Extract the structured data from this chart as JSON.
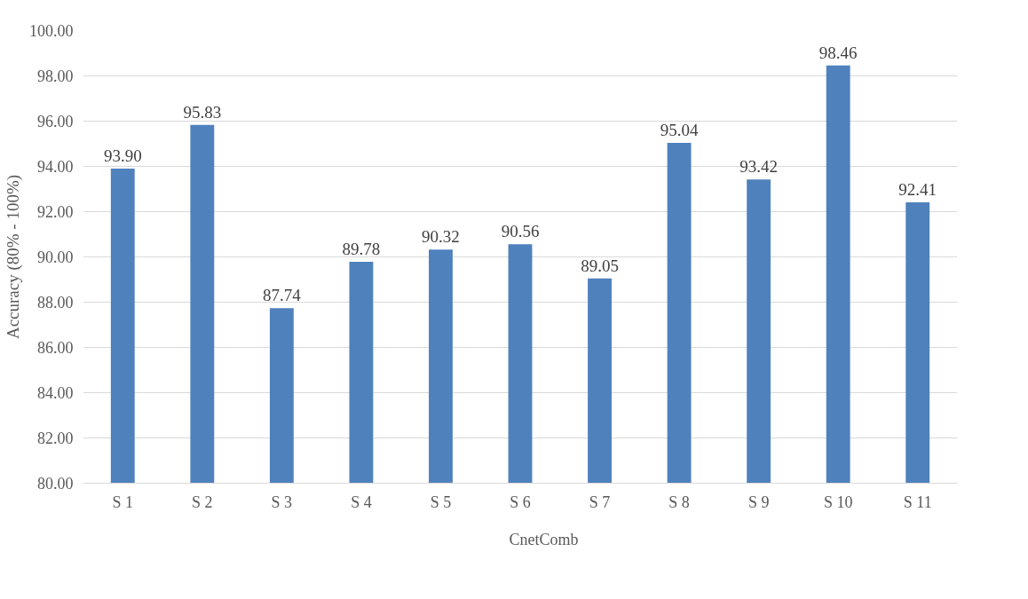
{
  "chart_data": {
    "type": "bar",
    "ylabel": "Accuracy (80% - 100%)",
    "categories": [
      "S 1",
      "S 2",
      "S 3",
      "S 4",
      "S 5",
      "S 6",
      "S 7",
      "S 8",
      "S 9",
      "S 10",
      "S 11"
    ],
    "series": [
      {
        "name": "CnetComb",
        "color": "#4f81bd",
        "values": [
          93.9,
          95.83,
          87.74,
          89.78,
          90.32,
          90.56,
          89.05,
          95.04,
          93.42,
          98.46,
          92.41
        ],
        "value_labels": [
          "93.90",
          "95.83",
          "87.74",
          "89.78",
          "90.32",
          "90.56",
          "89.05",
          "95.04",
          "93.42",
          "98.46",
          "92.41"
        ]
      }
    ],
    "ylim": [
      80,
      100
    ],
    "yticks": [
      {
        "value": 80,
        "label": "80.00"
      },
      {
        "value": 82,
        "label": "82.00"
      },
      {
        "value": 84,
        "label": "84.00"
      },
      {
        "value": 86,
        "label": "86.00"
      },
      {
        "value": 88,
        "label": "88.00"
      },
      {
        "value": 90,
        "label": "90.00"
      },
      {
        "value": 92,
        "label": "92.00"
      },
      {
        "value": 94,
        "label": "94.00"
      },
      {
        "value": 96,
        "label": "96.00"
      },
      {
        "value": 98,
        "label": "98.00"
      },
      {
        "value": 100,
        "label": "100.00"
      }
    ],
    "grid": "y",
    "legend": "bottom"
  }
}
